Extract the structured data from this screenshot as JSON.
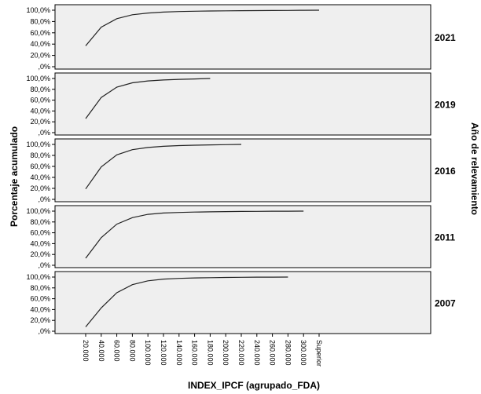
{
  "chart_data": {
    "type": "line",
    "xlabel": "INDEX_IPCF (agrupado_FDA)",
    "ylabel": "Porcentaje acumulado",
    "facet_label": "Año de relevamiento",
    "x_categories": [
      "20.000",
      "40.000",
      "60.000",
      "80.000",
      "100.000",
      "120.000",
      "140.000",
      "160.000",
      "180.000",
      "200.000",
      "220.000",
      "240.000",
      "260.000",
      "280.000",
      "300.000",
      "Superior"
    ],
    "y_ticks": [
      "100,0%",
      "80,0%",
      "60,0%",
      "40,0%",
      "20,0%",
      ",0%"
    ],
    "ylim": [
      0,
      100
    ],
    "panels": [
      {
        "year": "2021",
        "values": [
          37.0,
          70.0,
          85.0,
          92.0,
          95.0,
          96.7,
          97.6,
          98.2,
          98.6,
          98.9,
          99.1,
          99.3,
          99.5,
          99.6,
          99.8,
          100.0
        ]
      },
      {
        "year": "2019",
        "values": [
          26.0,
          65.0,
          84.0,
          92.0,
          95.5,
          97.3,
          98.4,
          99.2,
          100.0
        ]
      },
      {
        "year": "2016",
        "values": [
          19.0,
          59.0,
          81.0,
          90.5,
          94.5,
          96.6,
          97.8,
          98.6,
          99.1,
          99.6,
          100.0
        ]
      },
      {
        "year": "2011",
        "values": [
          13.0,
          51.0,
          76.0,
          88.0,
          94.0,
          96.5,
          97.5,
          98.2,
          98.7,
          99.1,
          99.4,
          99.6,
          99.8,
          99.9,
          100.0
        ]
      },
      {
        "year": "2007",
        "values": [
          8.0,
          43.0,
          71.0,
          86.0,
          93.0,
          96.2,
          97.6,
          98.4,
          98.9,
          99.3,
          99.6,
          99.8,
          99.9,
          100.0
        ]
      }
    ]
  }
}
